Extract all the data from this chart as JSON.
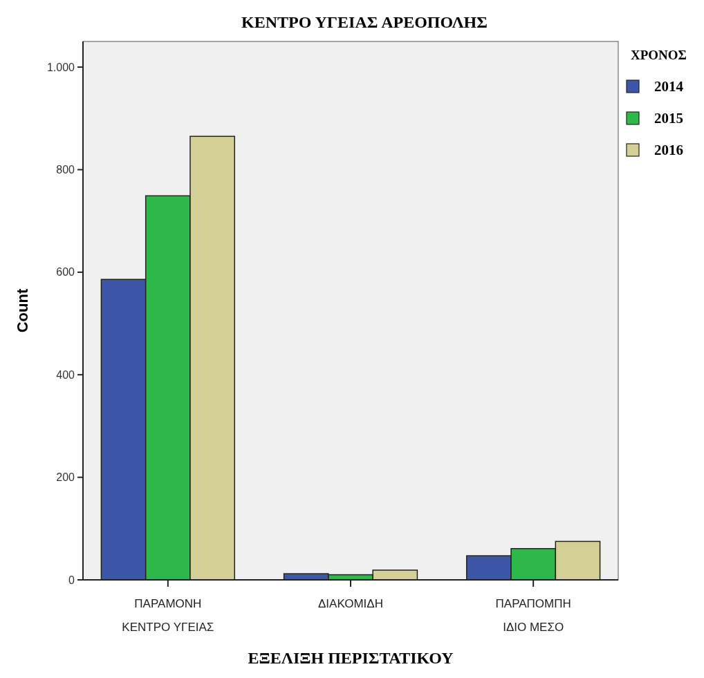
{
  "chart_data": {
    "type": "bar",
    "title": "ΚΕΝΤΡΟ ΥΓΕΙΑΣ ΑΡΕΟΠΟΛΗΣ",
    "xlabel": "ΕΞΕΛΙΞΗ ΠΕΡΙΣΤΑΤΙΚΟΥ",
    "ylabel": "Count",
    "legend_title": "ΧΡΟΝΟΣ",
    "legend": "top right",
    "categories": [
      "ΠΑΡΑΜΟΝΗ\nΚΕΝΤΡΟ ΥΓΕΙΑΣ",
      "ΔΙΑΚΟΜΙΔΗ",
      "ΠΑΡΑΠΟΜΠΗ\nΙΔΙΟ ΜΕΣΟ"
    ],
    "series": [
      {
        "name": "2014",
        "color": "#3d56a8",
        "values": [
          586,
          12,
          47
        ]
      },
      {
        "name": "2015",
        "color": "#2fb84a",
        "values": [
          749,
          10,
          61
        ]
      },
      {
        "name": "2016",
        "color": "#d3cf96",
        "values": [
          865,
          19,
          75
        ]
      }
    ],
    "ylim": [
      0,
      1050
    ],
    "yticks": [
      0,
      200,
      400,
      600,
      800,
      {
        "value": 1000,
        "label": "1.000"
      }
    ],
    "grid": false
  }
}
